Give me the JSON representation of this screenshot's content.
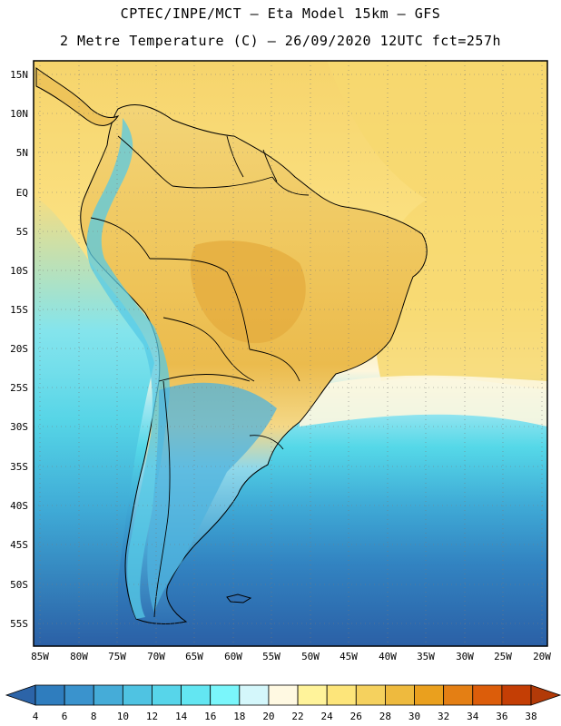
{
  "header": {
    "line1": "CPTEC/INPE/MCT –  Eta Model 15km – GFS",
    "line2": "2 Metre Temperature (C) – 26/09/2020 12UTC fct=257h"
  },
  "map": {
    "lat_labels": [
      "15N",
      "10N",
      "5N",
      "EQ",
      "5S",
      "10S",
      "15S",
      "20S",
      "25S",
      "30S",
      "35S",
      "40S",
      "45S",
      "50S",
      "55S"
    ],
    "lon_labels": [
      "85W",
      "80W",
      "75W",
      "70W",
      "65W",
      "60W",
      "55W",
      "50W",
      "45W",
      "40W",
      "35W",
      "30W",
      "25W",
      "20W"
    ],
    "colors": {
      "ocean_north": "#f5d36b",
      "land_warm": "#eec45a",
      "land_hot": "#e9b84c",
      "ocean_mid": "#fdf8dc",
      "ocean_cool": "#54d9e8",
      "ocean_cold": "#3f9fd0",
      "ocean_coldest": "#2f6fb2"
    }
  },
  "colorbar": {
    "ticks": [
      "4",
      "6",
      "8",
      "10",
      "12",
      "14",
      "16",
      "18",
      "20",
      "22",
      "24",
      "26",
      "28",
      "30",
      "32",
      "34",
      "36",
      "38"
    ],
    "colors": [
      "#2c64a8",
      "#2f7dbe",
      "#3a93cd",
      "#45acd8",
      "#4fc3e2",
      "#57d5ea",
      "#63e6f2",
      "#7af6fb",
      "#d4f7fb",
      "#fff9e2",
      "#fff39a",
      "#fde57a",
      "#f5d15e",
      "#eeba3e",
      "#eaa01e",
      "#e47f14",
      "#dc5d0a",
      "#c43e05",
      "#b23a08"
    ]
  }
}
